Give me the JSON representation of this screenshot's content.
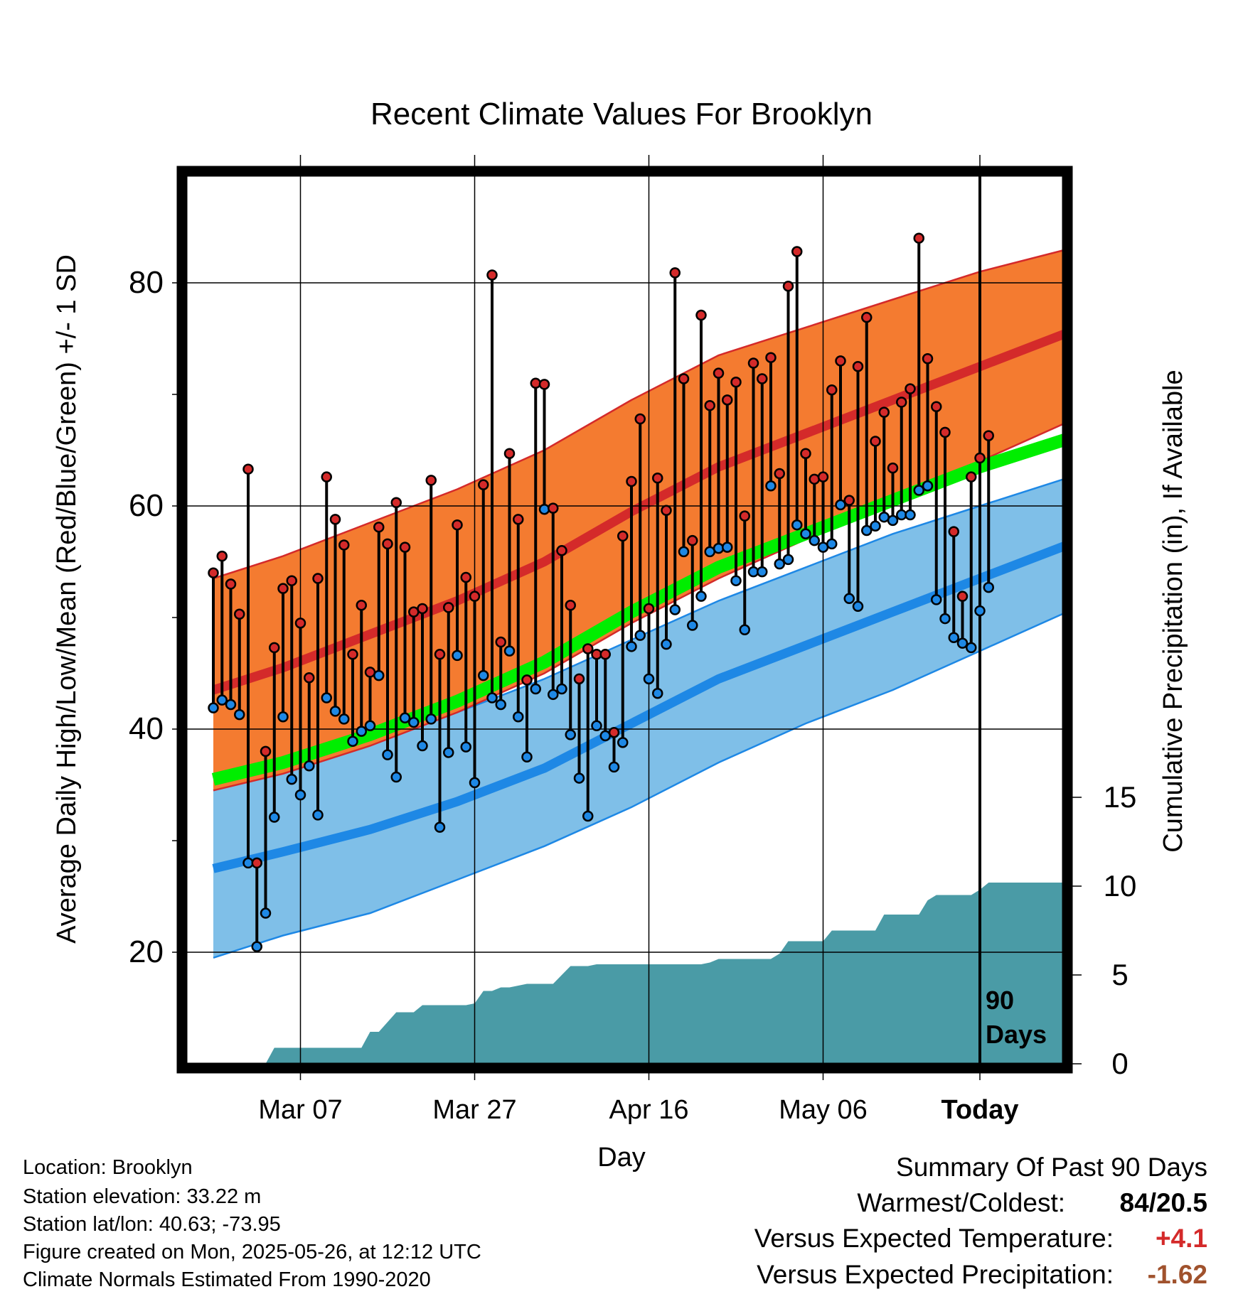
{
  "chart_data": {
    "type": "line",
    "title": "Recent Climate Values For Brooklyn",
    "xlabel": "Day",
    "ylabel": "Average Daily High/Low/Mean (Red/Blue/Green) +/- 1 SD",
    "y2label": "Cumulative Precipitation (in), If Available",
    "x_range_days": [
      -88,
      12
    ],
    "ylim": [
      11,
      90
    ],
    "y2lim": [
      0,
      68
    ],
    "x_ticks": [
      {
        "day": -78,
        "label": "Mar 07"
      },
      {
        "day": -58,
        "label": "Mar 27"
      },
      {
        "day": -38,
        "label": "Apr 16"
      },
      {
        "day": -18,
        "label": "May 06"
      },
      {
        "day": 0,
        "label": "Today"
      }
    ],
    "y_ticks": [
      20,
      40,
      60,
      80
    ],
    "y_minor_ticks": [
      30,
      50,
      70
    ],
    "y2_ticks": [
      0,
      5,
      10,
      15
    ],
    "grid": true,
    "marker_label": "90\nDays",
    "colors": {
      "high_band": "#f47b30",
      "high_mean": "#d42a2a",
      "low_band": "#7fbfe8",
      "low_mean": "#1e88e5",
      "mean_band": "#00ee00",
      "precip": "#4a9ba6",
      "high_point": "#d42a2a",
      "low_point": "#1e88e5",
      "warm": "#d42a2a",
      "dry": "#a0522d"
    },
    "normal_high": {
      "days": [
        -88,
        -80,
        -70,
        -60,
        -50,
        -40,
        -30,
        -20,
        -10,
        0,
        10
      ],
      "mean": [
        43.5,
        45.5,
        48.5,
        51.5,
        55,
        59.5,
        63.5,
        66.5,
        69.5,
        72.5,
        75.5
      ],
      "upper": [
        53.5,
        55.5,
        58.5,
        61.5,
        65,
        69.5,
        73.5,
        76,
        78.5,
        81,
        83
      ],
      "lower": [
        34.5,
        36,
        38.5,
        41.5,
        45,
        49.5,
        53.5,
        57,
        60.5,
        64,
        67.5
      ]
    },
    "normal_mean": {
      "days": [
        -88,
        -80,
        -70,
        -60,
        -50,
        -40,
        -30,
        -20,
        -10,
        0,
        10
      ],
      "mean": [
        35.5,
        37,
        39.5,
        42.5,
        46,
        50.5,
        54.5,
        57.5,
        60.5,
        63.5,
        66
      ]
    },
    "normal_low": {
      "days": [
        -88,
        -80,
        -70,
        -60,
        -50,
        -40,
        -30,
        -20,
        -10,
        0,
        10
      ],
      "mean": [
        27.5,
        29,
        31,
        33.5,
        36.5,
        40.5,
        44.5,
        47.5,
        50.5,
        53.5,
        56.5
      ],
      "upper": [
        34.5,
        36.5,
        39,
        41.5,
        44.5,
        48,
        51.5,
        54.5,
        57.5,
        60,
        62.5
      ],
      "lower": [
        19.5,
        21.5,
        23.5,
        26.5,
        29.5,
        33,
        37,
        40.5,
        43.5,
        47,
        50.5
      ]
    },
    "series": [
      {
        "name": "High",
        "values": [
          54,
          55.5,
          53,
          50.3,
          63.3,
          28,
          38,
          47.3,
          52.6,
          53.3,
          49.5,
          44.6,
          53.5,
          62.6,
          58.8,
          56.5,
          46.7,
          51.1,
          45.1,
          58.1,
          56.6,
          60.3,
          56.3,
          50.5,
          50.8,
          62.3,
          46.7,
          50.9,
          58.3,
          53.6,
          51.9,
          61.9,
          80.7,
          47.8,
          64.7,
          58.8,
          44.4,
          71,
          70.9,
          59.8,
          56,
          51.1,
          44.5,
          47.2,
          46.7,
          46.7,
          39.7,
          57.3,
          62.2,
          67.8,
          50.8,
          62.5,
          59.6,
          80.9,
          71.4,
          56.9,
          77.1,
          69,
          71.9,
          69.5,
          71.1,
          59.1,
          72.8,
          71.4,
          73.3,
          62.9,
          79.7,
          82.8,
          64.7,
          62.4,
          62.6,
          70.4,
          73,
          60.5,
          72.5,
          76.9,
          65.8,
          68.4,
          63.4,
          69.3,
          70.5,
          84,
          73.2,
          68.9,
          66.6,
          57.7,
          51.9,
          62.6,
          64.3,
          66.3
        ]
      },
      {
        "name": "Low",
        "values": [
          41.9,
          42.6,
          42.2,
          41.3,
          28,
          20.5,
          23.5,
          32.1,
          41.1,
          35.5,
          34.1,
          36.7,
          32.3,
          42.8,
          41.6,
          40.9,
          38.9,
          39.8,
          40.3,
          44.8,
          37.7,
          35.7,
          41,
          40.6,
          38.5,
          40.9,
          31.2,
          37.9,
          46.6,
          38.4,
          35.2,
          44.8,
          42.8,
          42.2,
          47,
          41.1,
          37.5,
          43.6,
          59.7,
          43.1,
          43.6,
          39.5,
          35.6,
          32.2,
          40.3,
          39.4,
          36.6,
          38.8,
          47.4,
          48.4,
          44.5,
          43.2,
          47.6,
          50.7,
          55.9,
          49.3,
          51.9,
          55.9,
          56.2,
          56.3,
          53.3,
          48.9,
          54.1,
          54.1,
          61.8,
          54.8,
          55.2,
          58.3,
          57.5,
          56.9,
          56.3,
          56.6,
          60.1,
          51.7,
          51,
          57.8,
          58.2,
          59,
          58.7,
          59.2,
          59.2,
          61.4,
          61.8,
          51.6,
          49.9,
          48.2,
          47.7,
          47.3,
          50.6,
          52.7
        ]
      },
      {
        "name": "Cumulative Precipitation",
        "days": [
          -88,
          -82,
          -81,
          -78,
          -76,
          -75,
          -72,
          -71,
          -70,
          -69,
          -67,
          -66,
          -65,
          -64,
          -63,
          -62,
          -61,
          -60,
          -59,
          -58,
          -57,
          -56,
          -55,
          -54,
          -53,
          -52,
          -51,
          -50,
          -49,
          -48,
          -47,
          -46,
          -45,
          -44,
          -43,
          -42,
          -41,
          -40,
          -39,
          -38,
          -37,
          -36,
          -35,
          -34,
          -33,
          -32,
          -31,
          -30,
          -29,
          -28,
          -27,
          -26,
          -25,
          -24,
          -23,
          -22,
          -21,
          -20,
          -19,
          -18,
          -17,
          -16,
          -15,
          -14,
          -13,
          -12,
          -11,
          -10,
          -9,
          -8,
          -7,
          -6,
          -5,
          -4,
          -3,
          -2,
          -1,
          0,
          1,
          2,
          3,
          4,
          5,
          6,
          7,
          8,
          9,
          10
        ],
        "values": [
          0,
          0,
          0.9,
          0.9,
          0.9,
          0.9,
          0.9,
          0.9,
          1.8,
          1.8,
          2.9,
          2.9,
          2.9,
          3.3,
          3.3,
          3.3,
          3.3,
          3.3,
          3.3,
          3.4,
          4.1,
          4.1,
          4.3,
          4.3,
          4.4,
          4.5,
          4.5,
          4.5,
          4.5,
          5.0,
          5.5,
          5.5,
          5.5,
          5.6,
          5.6,
          5.6,
          5.6,
          5.6,
          5.6,
          5.6,
          5.6,
          5.6,
          5.6,
          5.6,
          5.6,
          5.6,
          5.7,
          5.9,
          5.9,
          5.9,
          5.9,
          5.9,
          5.9,
          5.9,
          6.2,
          6.9,
          6.9,
          6.9,
          6.9,
          6.9,
          7.5,
          7.5,
          7.5,
          7.5,
          7.5,
          7.5,
          8.4,
          8.4,
          8.4,
          8.4,
          8.4,
          9.2,
          9.5,
          9.5,
          9.5,
          9.5,
          9.5,
          9.8,
          10.2,
          10.2,
          10.2,
          10.2,
          10.2,
          10.2,
          10.2,
          10.2,
          10.2,
          10.2
        ]
      }
    ]
  },
  "info": {
    "location": "Location: Brooklyn",
    "elevation": "Station elevation: 33.22 m",
    "latlon": "Station lat/lon: 40.63; -73.95",
    "created": "Figure created on Mon, 2025-05-26, at 12:12 UTC",
    "normals": "Climate Normals Estimated From 1990-2020"
  },
  "summary": {
    "title": "Summary Of Past 90 Days",
    "warmest_coldest_label": "Warmest/Coldest:",
    "warmest_coldest_value": "84/20.5",
    "temp_label": "Versus Expected Temperature:",
    "temp_value": "+4.1",
    "precip_label": "Versus Expected Precipitation:",
    "precip_value": "-1.62"
  }
}
